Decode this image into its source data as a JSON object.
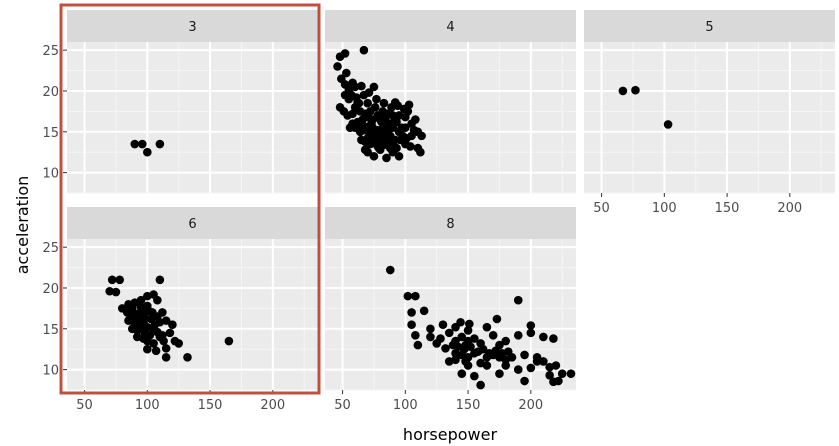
{
  "chart_data": {
    "type": "scatter",
    "xlabel": "horsepower",
    "ylabel": "acceleration",
    "xlim": [
      36,
      236
    ],
    "ylim": [
      7.5,
      26
    ],
    "x_ticks": [
      "50",
      "100",
      "150",
      "200"
    ],
    "y_ticks": [
      "10",
      "15",
      "20",
      "25"
    ],
    "grid": true,
    "highlight_color": "#c0503c",
    "point_color": "#000000",
    "panel_bg": "#ebebeb",
    "strip_bg": "#d9d9d9",
    "panels": [
      {
        "label": "3",
        "highlighted": true,
        "points": [
          [
            90,
            13.5
          ],
          [
            96,
            13.5
          ],
          [
            100,
            12.5
          ],
          [
            110,
            13.5
          ]
        ]
      },
      {
        "label": "4",
        "highlighted": false,
        "points": [
          [
            48,
            24.2
          ],
          [
            52,
            24.6
          ],
          [
            46,
            23
          ],
          [
            67,
            25
          ],
          [
            53,
            22.2
          ],
          [
            49,
            21.5
          ],
          [
            58,
            21
          ],
          [
            60,
            20.5
          ],
          [
            65,
            20.6
          ],
          [
            52,
            19.5
          ],
          [
            55,
            19
          ],
          [
            61,
            19.2
          ],
          [
            62,
            18.6
          ],
          [
            67,
            19.5
          ],
          [
            70,
            18.5
          ],
          [
            75,
            20.5
          ],
          [
            48,
            18
          ],
          [
            51,
            17.5
          ],
          [
            54,
            17
          ],
          [
            58,
            17.2
          ],
          [
            60,
            18
          ],
          [
            64,
            17.5
          ],
          [
            66,
            16.5
          ],
          [
            68,
            17.2
          ],
          [
            70,
            16.8
          ],
          [
            72,
            17.5
          ],
          [
            74,
            16.5
          ],
          [
            76,
            18
          ],
          [
            78,
            17
          ],
          [
            80,
            16.5
          ],
          [
            82,
            17.5
          ],
          [
            84,
            16.6
          ],
          [
            86,
            17.2
          ],
          [
            88,
            16
          ],
          [
            90,
            17
          ],
          [
            92,
            16.5
          ],
          [
            95,
            17
          ],
          [
            97,
            15.5
          ],
          [
            100,
            16.8
          ],
          [
            58,
            16
          ],
          [
            60,
            15.5
          ],
          [
            62,
            16.2
          ],
          [
            64,
            15
          ],
          [
            66,
            15.8
          ],
          [
            68,
            15.2
          ],
          [
            70,
            15.6
          ],
          [
            72,
            14.8
          ],
          [
            74,
            15.5
          ],
          [
            76,
            14.5
          ],
          [
            78,
            15.2
          ],
          [
            80,
            14.6
          ],
          [
            82,
            15.4
          ],
          [
            84,
            14.2
          ],
          [
            86,
            15
          ],
          [
            88,
            14.5
          ],
          [
            90,
            15.5
          ],
          [
            92,
            14
          ],
          [
            95,
            15
          ],
          [
            98,
            14.5
          ],
          [
            100,
            15.5
          ],
          [
            65,
            14
          ],
          [
            68,
            13.8
          ],
          [
            70,
            14.2
          ],
          [
            72,
            13.5
          ],
          [
            75,
            14
          ],
          [
            78,
            13.2
          ],
          [
            80,
            13.8
          ],
          [
            83,
            13.4
          ],
          [
            86,
            14
          ],
          [
            88,
            13
          ],
          [
            90,
            13.5
          ],
          [
            93,
            13
          ],
          [
            96,
            14
          ],
          [
            100,
            13.5
          ],
          [
            105,
            14.5
          ],
          [
            110,
            13
          ],
          [
            113,
            14.5
          ],
          [
            112,
            12.5
          ],
          [
            110,
            15
          ],
          [
            70,
            12.5
          ],
          [
            75,
            12
          ],
          [
            80,
            12.8
          ],
          [
            85,
            11.8
          ],
          [
            90,
            12.5
          ],
          [
            95,
            12
          ],
          [
            105,
            16
          ],
          [
            102,
            17.5
          ],
          [
            108,
            16.5
          ],
          [
            63,
            18.5
          ],
          [
            57,
            19.5
          ],
          [
            71,
            19.8
          ],
          [
            77,
            19
          ],
          [
            83,
            18.5
          ],
          [
            89,
            18
          ],
          [
            94,
            18.2
          ],
          [
            99,
            17.8
          ],
          [
            56,
            15.5
          ],
          [
            73,
            16
          ],
          [
            81,
            16.2
          ],
          [
            87,
            15.8
          ],
          [
            93,
            16.2
          ],
          [
            79,
            13
          ],
          [
            68,
            12.8
          ],
          [
            92,
            18.6
          ],
          [
            101,
            14.2
          ],
          [
            104,
            13.2
          ],
          [
            107,
            15.2
          ],
          [
            103,
            18.3
          ],
          [
            55,
            20.2
          ],
          [
            52,
            20.8
          ]
        ]
      },
      {
        "label": "5",
        "highlighted": false,
        "points": [
          [
            67,
            20
          ],
          [
            77,
            20.1
          ],
          [
            103,
            15.9
          ]
        ]
      },
      {
        "label": "6",
        "highlighted": true,
        "points": [
          [
            72,
            21
          ],
          [
            75,
            19.5
          ],
          [
            78,
            21
          ],
          [
            70,
            19.6
          ],
          [
            110,
            21
          ],
          [
            85,
            18
          ],
          [
            90,
            18.2
          ],
          [
            95,
            18.5
          ],
          [
            100,
            19
          ],
          [
            105,
            19.2
          ],
          [
            108,
            18.5
          ],
          [
            80,
            17.5
          ],
          [
            84,
            17
          ],
          [
            88,
            17.5
          ],
          [
            92,
            16.8
          ],
          [
            96,
            17.2
          ],
          [
            100,
            17.8
          ],
          [
            104,
            17
          ],
          [
            108,
            16.5
          ],
          [
            112,
            17
          ],
          [
            85,
            16
          ],
          [
            88,
            16.2
          ],
          [
            90,
            15.5
          ],
          [
            94,
            16
          ],
          [
            97,
            15.8
          ],
          [
            100,
            15.2
          ],
          [
            103,
            16.2
          ],
          [
            106,
            15.5
          ],
          [
            110,
            15.8
          ],
          [
            115,
            16
          ],
          [
            88,
            15
          ],
          [
            92,
            14.8
          ],
          [
            95,
            15.2
          ],
          [
            98,
            14.5
          ],
          [
            102,
            14.2
          ],
          [
            105,
            15
          ],
          [
            108,
            14.6
          ],
          [
            112,
            14.2
          ],
          [
            118,
            14.5
          ],
          [
            120,
            15.5
          ],
          [
            92,
            14
          ],
          [
            97,
            13.8
          ],
          [
            100,
            13.5
          ],
          [
            105,
            13.2
          ],
          [
            110,
            14
          ],
          [
            113,
            13.5
          ],
          [
            115,
            12.6
          ],
          [
            122,
            13.5
          ],
          [
            125,
            13.2
          ],
          [
            100,
            12.5
          ],
          [
            107,
            12.3
          ],
          [
            115,
            11.5
          ],
          [
            132,
            11.5
          ],
          [
            165,
            13.5
          ],
          [
            95,
            17.6
          ],
          [
            98,
            16.4
          ],
          [
            101,
            17.2
          ],
          [
            86,
            16.8
          ],
          [
            91,
            15.7
          ]
        ]
      },
      {
        "label": "8",
        "highlighted": false,
        "points": [
          [
            88,
            22.2
          ],
          [
            102,
            19
          ],
          [
            108,
            19
          ],
          [
            190,
            18.5
          ],
          [
            105,
            17
          ],
          [
            115,
            17.2
          ],
          [
            105,
            15.5
          ],
          [
            120,
            15
          ],
          [
            130,
            15.5
          ],
          [
            140,
            15.2
          ],
          [
            150,
            14.8
          ],
          [
            165,
            15.2
          ],
          [
            200,
            15.4
          ],
          [
            108,
            14.2
          ],
          [
            120,
            14
          ],
          [
            128,
            13.8
          ],
          [
            135,
            14.5
          ],
          [
            140,
            13.5
          ],
          [
            145,
            14
          ],
          [
            150,
            13.5
          ],
          [
            155,
            13.8
          ],
          [
            160,
            13.2
          ],
          [
            170,
            14.2
          ],
          [
            175,
            13
          ],
          [
            180,
            13.5
          ],
          [
            190,
            14.2
          ],
          [
            200,
            14.5
          ],
          [
            210,
            14
          ],
          [
            218,
            13.8
          ],
          [
            110,
            13
          ],
          [
            125,
            13.2
          ],
          [
            132,
            12.6
          ],
          [
            138,
            13
          ],
          [
            142,
            12.8
          ],
          [
            147,
            12.5
          ],
          [
            152,
            12.8
          ],
          [
            158,
            12.2
          ],
          [
            162,
            12.5
          ],
          [
            167,
            12
          ],
          [
            172,
            12.3
          ],
          [
            177,
            12
          ],
          [
            182,
            12.2
          ],
          [
            140,
            12
          ],
          [
            145,
            11.8
          ],
          [
            150,
            11.5
          ],
          [
            155,
            12
          ],
          [
            165,
            11.5
          ],
          [
            170,
            11.8
          ],
          [
            175,
            11.5
          ],
          [
            180,
            11.2
          ],
          [
            185,
            11.5
          ],
          [
            195,
            11.8
          ],
          [
            205,
            11.5
          ],
          [
            135,
            11
          ],
          [
            140,
            11.2
          ],
          [
            148,
            11
          ],
          [
            150,
            10.5
          ],
          [
            160,
            10.8
          ],
          [
            165,
            10.5
          ],
          [
            180,
            10.5
          ],
          [
            190,
            10
          ],
          [
            205,
            11
          ],
          [
            210,
            11
          ],
          [
            215,
            10.3
          ],
          [
            220,
            10.5
          ],
          [
            225,
            9.5
          ],
          [
            232,
            9.5
          ],
          [
            145,
            9.5
          ],
          [
            155,
            9.2
          ],
          [
            175,
            9.5
          ],
          [
            195,
            8.6
          ],
          [
            200,
            10.2
          ],
          [
            215,
            9.3
          ],
          [
            218,
            8.5
          ],
          [
            222,
            8.6
          ],
          [
            160,
            8.1
          ],
          [
            144,
            15.8
          ],
          [
            151,
            15.6
          ],
          [
            173,
            16.2
          ],
          [
            148,
            13
          ]
        ]
      }
    ]
  }
}
